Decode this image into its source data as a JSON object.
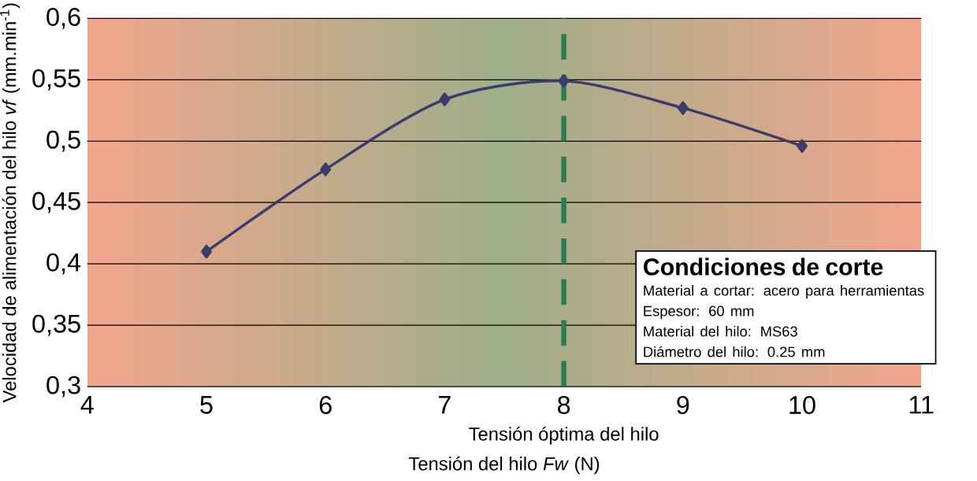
{
  "chart_data": {
    "type": "line",
    "xlabel": "Tensión del hilo *Fw* (N)",
    "ylabel": "Velocidad de alimentación del hilo *vf* (mm.min$^{-1}$)",
    "x": [
      5,
      6,
      7,
      8,
      9,
      10
    ],
    "series": [
      {
        "color": "#3a3d6b",
        "values": [
          0.41,
          0.477,
          0.534,
          0.549,
          0.527,
          0.496
        ]
      }
    ],
    "xlim": [
      4,
      11
    ],
    "xticks": [
      4,
      5,
      6,
      7,
      8,
      9,
      10,
      11
    ],
    "ylim": [
      0.3,
      0.6
    ],
    "yticks": [
      {
        "value": 0.3,
        "label": "0,3"
      },
      {
        "value": 0.35,
        "label": "0,35"
      },
      {
        "value": 0.4,
        "label": "0,4"
      },
      {
        "value": 0.45,
        "label": "0,45"
      },
      {
        "value": 0.5,
        "label": "0,5"
      },
      {
        "value": 0.55,
        "label": "0,55"
      },
      {
        "value": 0.6,
        "label": "0,6"
      }
    ],
    "grid": "y",
    "marker": "diamond",
    "line_style": "solid",
    "ref_lines": [
      {
        "axis": "x",
        "value": 8,
        "label": "Tensión óptima del hilo",
        "color": "#2e7a55",
        "line_style": "dashed"
      }
    ],
    "annotations": [
      "Condiciones de corte",
      "Material a cortar: acero para herramientas",
      "Espesor: 60 mm",
      "Material del hilo: MS63",
      "Diámetro del hilo: 0.25 mm"
    ]
  }
}
